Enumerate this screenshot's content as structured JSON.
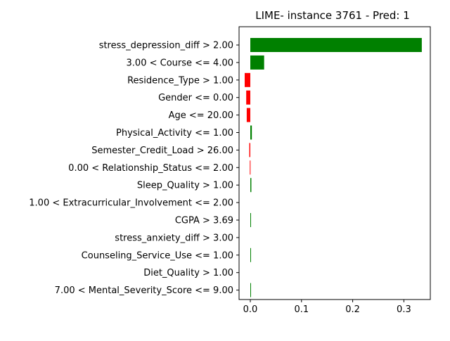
{
  "chart_data": {
    "type": "bar",
    "orientation": "horizontal",
    "title": "LIME- instance 3761 - Pred: 1",
    "xlabel": "",
    "ylabel": "",
    "xlim": [
      -0.03,
      0.35
    ],
    "xticks": [
      0.0,
      0.1,
      0.2,
      0.3
    ],
    "xtick_labels": [
      "0.0",
      "0.1",
      "0.2",
      "0.3"
    ],
    "grid": false,
    "categories": [
      "stress_depression_diff > 2.00",
      "3.00 < Course <= 4.00",
      "Residence_Type > 1.00",
      "Gender <= 0.00",
      "Age <= 20.00",
      "Physical_Activity <= 1.00",
      "Semester_Credit_Load > 26.00",
      "0.00 < Relationship_Status <= 2.00",
      "Sleep_Quality > 1.00",
      "1.00 < Extracurricular_Involvement <= 2.00",
      "CGPA > 3.69",
      "stress_anxiety_diff > 3.00",
      "Counseling_Service_Use <= 1.00",
      "Diet_Quality > 1.00",
      "7.00 < Mental_Severity_Score <= 9.00"
    ],
    "values": [
      0.335,
      0.027,
      -0.011,
      -0.008,
      -0.007,
      0.003,
      -0.002,
      -0.001,
      0.002,
      0.0,
      0.001,
      0.0,
      0.001,
      0.0,
      0.001
    ],
    "colors": {
      "positive": "#008000",
      "negative": "#ff0000"
    }
  }
}
